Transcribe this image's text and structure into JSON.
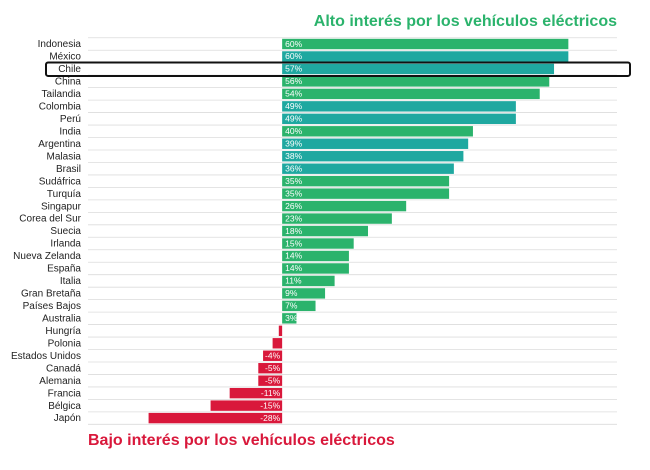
{
  "chart_data": {
    "type": "diverging-bar",
    "title": "Alto interés por los vehículos eléctricos",
    "subtitle": "Bajo interés por los vehículos eléctricos",
    "categories": [
      "Indonesia",
      "México",
      "Chile",
      "China",
      "Tailandia",
      "Colombia",
      "Perú",
      "India",
      "Argentina",
      "Malasia",
      "Brasil",
      "Sudáfrica",
      "Turquía",
      "Singapur",
      "Corea del Sur",
      "Suecia",
      "Irlanda",
      "Nueva Zelanda",
      "España",
      "Italia",
      "Gran Bretaña",
      "Países Bajos",
      "Australia",
      "Hungría",
      "Polonia",
      "Estados Unidos",
      "Canadá",
      "Alemania",
      "Francia",
      "Bélgica",
      "Japón"
    ],
    "values": [
      60,
      60,
      57,
      56,
      54,
      49,
      49,
      40,
      39,
      38,
      36,
      35,
      35,
      26,
      23,
      18,
      15,
      14,
      14,
      11,
      9,
      7,
      3,
      -0.7,
      -2,
      -4,
      -5,
      -5,
      -11,
      -15,
      -28
    ],
    "value_labels": [
      "60%",
      "60%",
      "57%",
      "56%",
      "54%",
      "49%",
      "49%",
      "40%",
      "39%",
      "38%",
      "36%",
      "35%",
      "35%",
      "26%",
      "23%",
      "18%",
      "15%",
      "14%",
      "14%",
      "11%",
      "9%",
      "7%",
      "3%",
      null,
      null,
      "-4%",
      "-5%",
      "-5%",
      "-11%",
      "-15%",
      "-28%"
    ],
    "colors": [
      "#2bb36c",
      "#1fa8a0",
      "#1fa8a0",
      "#2bb36c",
      "#2bb36c",
      "#1fa8a0",
      "#1fa8a0",
      "#2bb36c",
      "#1fa8a0",
      "#1fa8a0",
      "#1fa8a0",
      "#2bb36c",
      "#2bb36c",
      "#2bb36c",
      "#2bb36c",
      "#2bb36c",
      "#2bb36c",
      "#2bb36c",
      "#2bb36c",
      "#2bb36c",
      "#2bb36c",
      "#2bb36c",
      "#2bb36c",
      "#d9183b",
      "#d9183b",
      "#d9183b",
      "#d9183b",
      "#d9183b",
      "#d9183b",
      "#d9183b",
      "#d9183b"
    ],
    "xlim": [
      -40.7,
      70.2
    ],
    "highlight_index": 2,
    "grid": true
  }
}
